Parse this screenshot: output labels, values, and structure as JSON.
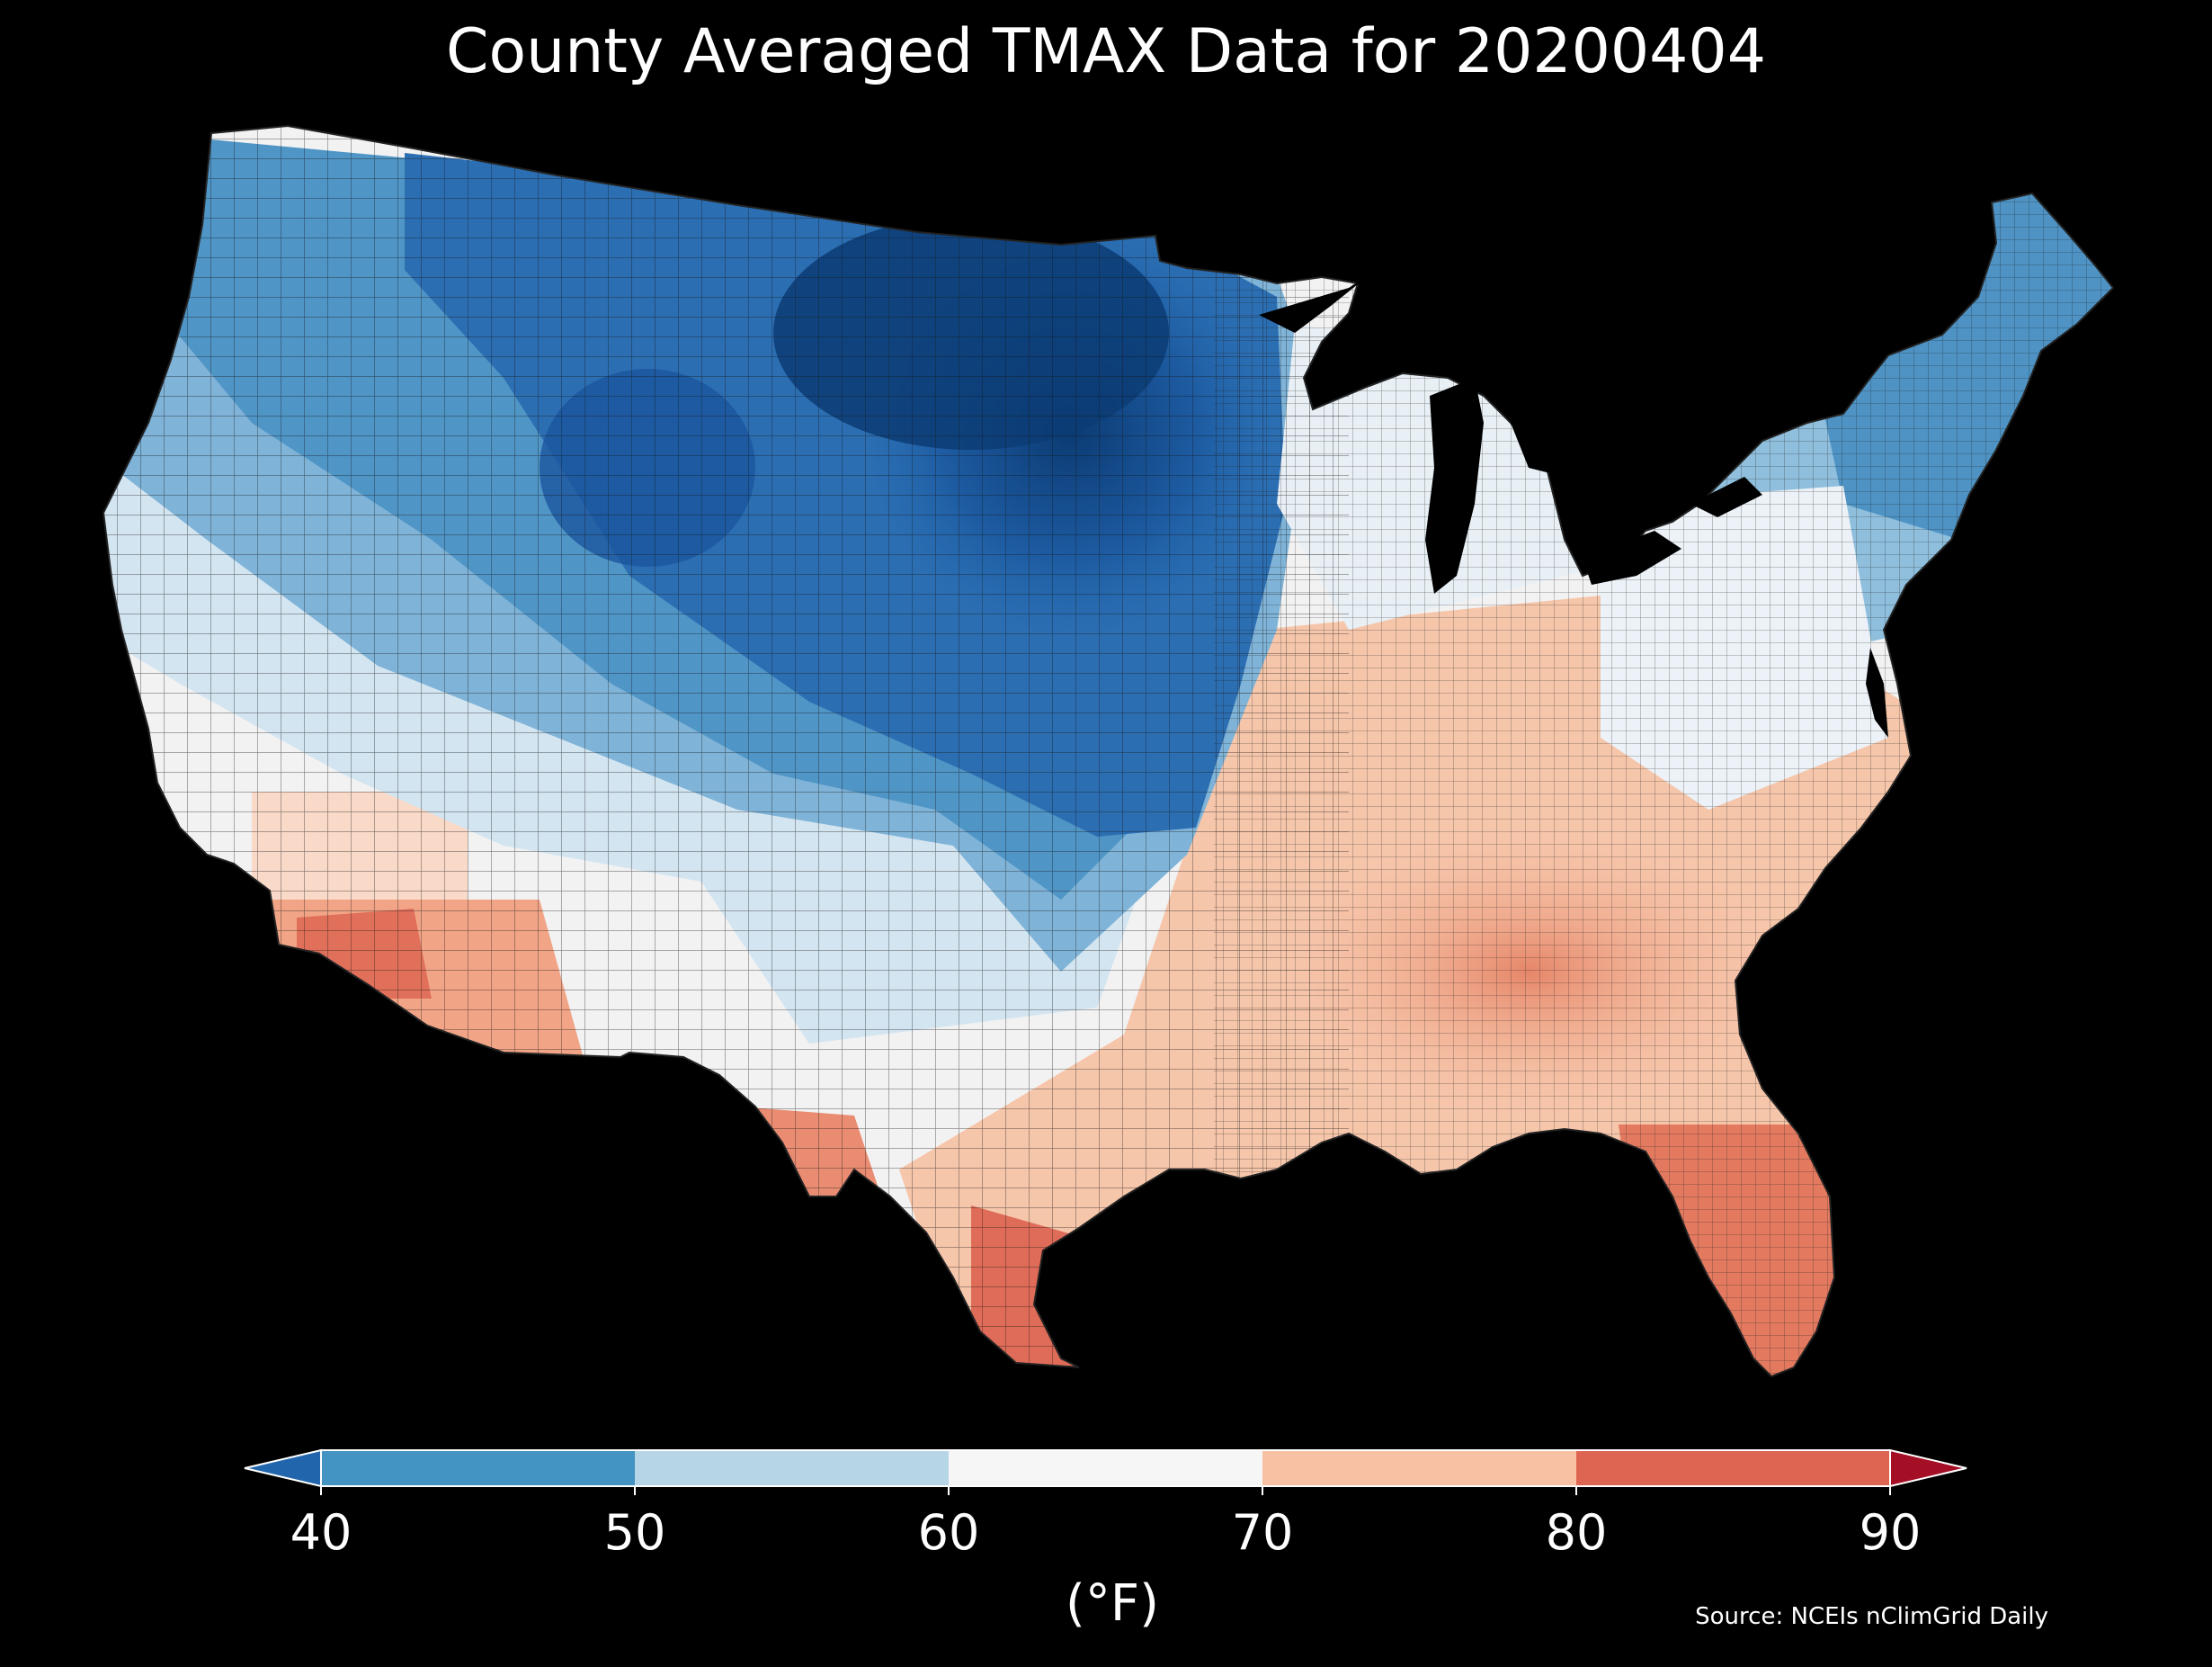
{
  "title": "County Averaged TMAX Data for 20200404",
  "source": "Source: NCEIs nClimGrid Daily",
  "colorbar": {
    "unit_label": "(°F)",
    "ticks": [
      "40",
      "50",
      "60",
      "70",
      "80",
      "90"
    ],
    "bins": [
      {
        "range": "<40",
        "color": "#2166ac"
      },
      {
        "range": "40-50",
        "color": "#4393c3"
      },
      {
        "range": "50-60",
        "color": "#b6d6e8"
      },
      {
        "range": "60-70",
        "color": "#f6f6f6"
      },
      {
        "range": "70-80",
        "color": "#f8c1a4"
      },
      {
        "range": "80-90",
        "color": "#de6552"
      },
      {
        "range": ">90",
        "color": "#a50f26"
      }
    ]
  },
  "map": {
    "region": "Contiguous United States, county level",
    "background": "#000000",
    "border_color": "#1a1a1a"
  }
}
